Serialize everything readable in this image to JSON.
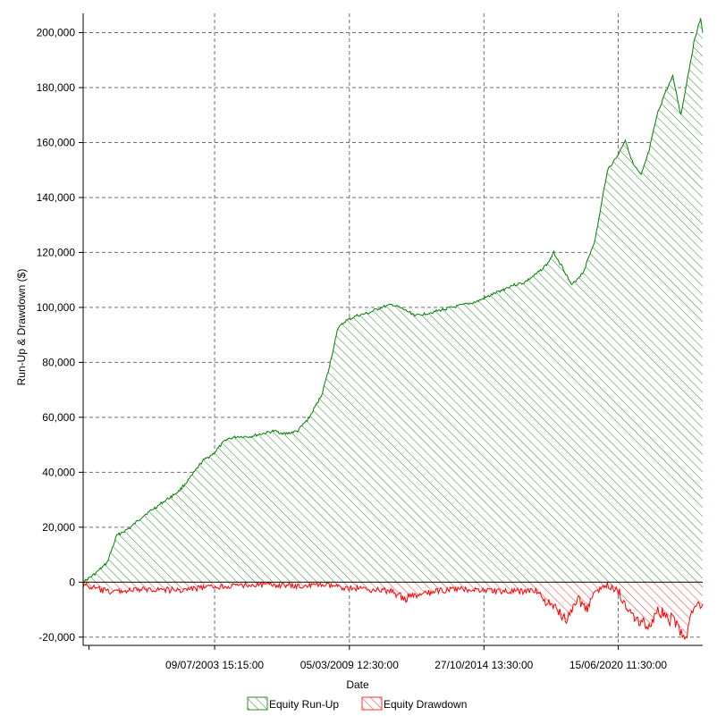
{
  "chart_data": {
    "type": "area",
    "xlabel": "Date",
    "ylabel": "Run-Up & Drawdown ($)",
    "ylim": [
      -23000,
      207000
    ],
    "yticks": [
      -20000,
      0,
      20000,
      40000,
      60000,
      80000,
      100000,
      120000,
      140000,
      160000,
      180000,
      200000
    ],
    "ytick_labels": [
      "-20,000",
      "0",
      "20,000",
      "40,000",
      "60,000",
      "80,000",
      "100,000",
      "120,000",
      "140,000",
      "160,000",
      "180,000",
      "200,000"
    ],
    "xticks": [
      {
        "value": "1998-04-01",
        "label": ""
      },
      {
        "value": "2003-07-09",
        "label": "09/07/2003 15:15:00"
      },
      {
        "value": "2009-03-05",
        "label": "05/03/2009 12:30:00"
      },
      {
        "value": "2014-10-27",
        "label": "27/10/2014 13:30:00"
      },
      {
        "value": "2020-06-15",
        "label": "15/06/2020 11:30:00"
      }
    ],
    "xlim": [
      "1998-01-01",
      "2024-01-01"
    ],
    "grid": true,
    "legend": "bottom",
    "series": [
      {
        "name": "Equity Run-Up",
        "color": "#008000",
        "fill": "hatch",
        "points": [
          [
            "1998-01-01",
            0
          ],
          [
            "1998-07-01",
            3000
          ],
          [
            "1999-01-01",
            7000
          ],
          [
            "1999-06-01",
            17000
          ],
          [
            "2000-01-01",
            20000
          ],
          [
            "2000-07-01",
            24000
          ],
          [
            "2001-01-01",
            27000
          ],
          [
            "2001-07-01",
            30000
          ],
          [
            "2002-01-01",
            33000
          ],
          [
            "2002-07-01",
            38000
          ],
          [
            "2003-01-01",
            44000
          ],
          [
            "2003-07-01",
            47000
          ],
          [
            "2004-01-01",
            52000
          ],
          [
            "2004-07-01",
            53000
          ],
          [
            "2005-01-01",
            53000
          ],
          [
            "2005-07-01",
            54000
          ],
          [
            "2006-01-01",
            55000
          ],
          [
            "2006-07-01",
            54000
          ],
          [
            "2007-01-01",
            55000
          ],
          [
            "2007-07-01",
            60000
          ],
          [
            "2008-01-01",
            68000
          ],
          [
            "2008-05-01",
            78000
          ],
          [
            "2008-09-01",
            92000
          ],
          [
            "2009-01-01",
            95000
          ],
          [
            "2009-07-01",
            97000
          ],
          [
            "2010-01-01",
            98000
          ],
          [
            "2010-07-01",
            100000
          ],
          [
            "2011-01-01",
            101000
          ],
          [
            "2011-07-01",
            99000
          ],
          [
            "2012-01-01",
            97000
          ],
          [
            "2012-07-01",
            98000
          ],
          [
            "2013-01-01",
            99000
          ],
          [
            "2013-07-01",
            100000
          ],
          [
            "2014-01-01",
            101000
          ],
          [
            "2014-07-01",
            102000
          ],
          [
            "2015-01-01",
            104000
          ],
          [
            "2015-07-01",
            106000
          ],
          [
            "2016-01-01",
            108000
          ],
          [
            "2016-07-01",
            109000
          ],
          [
            "2017-01-01",
            112000
          ],
          [
            "2017-07-01",
            116000
          ],
          [
            "2017-10-01",
            120000
          ],
          [
            "2018-03-01",
            114000
          ],
          [
            "2018-07-01",
            108000
          ],
          [
            "2019-01-01",
            113000
          ],
          [
            "2019-07-01",
            125000
          ],
          [
            "2020-01-01",
            150000
          ],
          [
            "2020-06-01",
            155000
          ],
          [
            "2020-10-01",
            161000
          ],
          [
            "2021-02-01",
            152000
          ],
          [
            "2021-06-01",
            148000
          ],
          [
            "2021-10-01",
            157000
          ],
          [
            "2022-02-01",
            170000
          ],
          [
            "2022-06-01",
            178000
          ],
          [
            "2022-10-01",
            184000
          ],
          [
            "2023-02-01",
            170000
          ],
          [
            "2023-06-01",
            186000
          ],
          [
            "2023-09-01",
            198000
          ],
          [
            "2023-12-01",
            205000
          ],
          [
            "2024-01-01",
            200000
          ]
        ]
      },
      {
        "name": "Equity Drawdown",
        "color": "#ff0000",
        "fill": "hatch",
        "points": [
          [
            "1998-01-01",
            -1000
          ],
          [
            "1999-01-01",
            -3500
          ],
          [
            "2000-01-01",
            -3000
          ],
          [
            "2001-01-01",
            -2500
          ],
          [
            "2002-01-01",
            -3000
          ],
          [
            "2003-01-01",
            -2000
          ],
          [
            "2004-01-01",
            -1500
          ],
          [
            "2005-01-01",
            -1000
          ],
          [
            "2006-01-01",
            -1000
          ],
          [
            "2007-01-01",
            -1500
          ],
          [
            "2008-01-01",
            -1000
          ],
          [
            "2009-01-01",
            -2000
          ],
          [
            "2010-01-01",
            -2500
          ],
          [
            "2011-01-01",
            -3500
          ],
          [
            "2011-07-01",
            -6000
          ],
          [
            "2012-01-01",
            -5000
          ],
          [
            "2013-01-01",
            -3000
          ],
          [
            "2014-01-01",
            -2500
          ],
          [
            "2015-01-01",
            -3000
          ],
          [
            "2016-01-01",
            -3500
          ],
          [
            "2017-01-01",
            -3000
          ],
          [
            "2017-07-01",
            -8000
          ],
          [
            "2018-01-01",
            -11000
          ],
          [
            "2018-05-01",
            -13000
          ],
          [
            "2018-10-01",
            -6000
          ],
          [
            "2019-03-01",
            -10000
          ],
          [
            "2019-06-01",
            -4000
          ],
          [
            "2020-01-01",
            -1000
          ],
          [
            "2020-06-01",
            -3000
          ],
          [
            "2021-01-01",
            -11000
          ],
          [
            "2021-06-01",
            -14000
          ],
          [
            "2021-10-01",
            -16000
          ],
          [
            "2022-03-01",
            -10000
          ],
          [
            "2022-08-01",
            -13000
          ],
          [
            "2023-01-01",
            -15000
          ],
          [
            "2023-04-01",
            -22000
          ],
          [
            "2023-08-01",
            -10000
          ],
          [
            "2024-01-01",
            -8000
          ]
        ]
      }
    ]
  }
}
